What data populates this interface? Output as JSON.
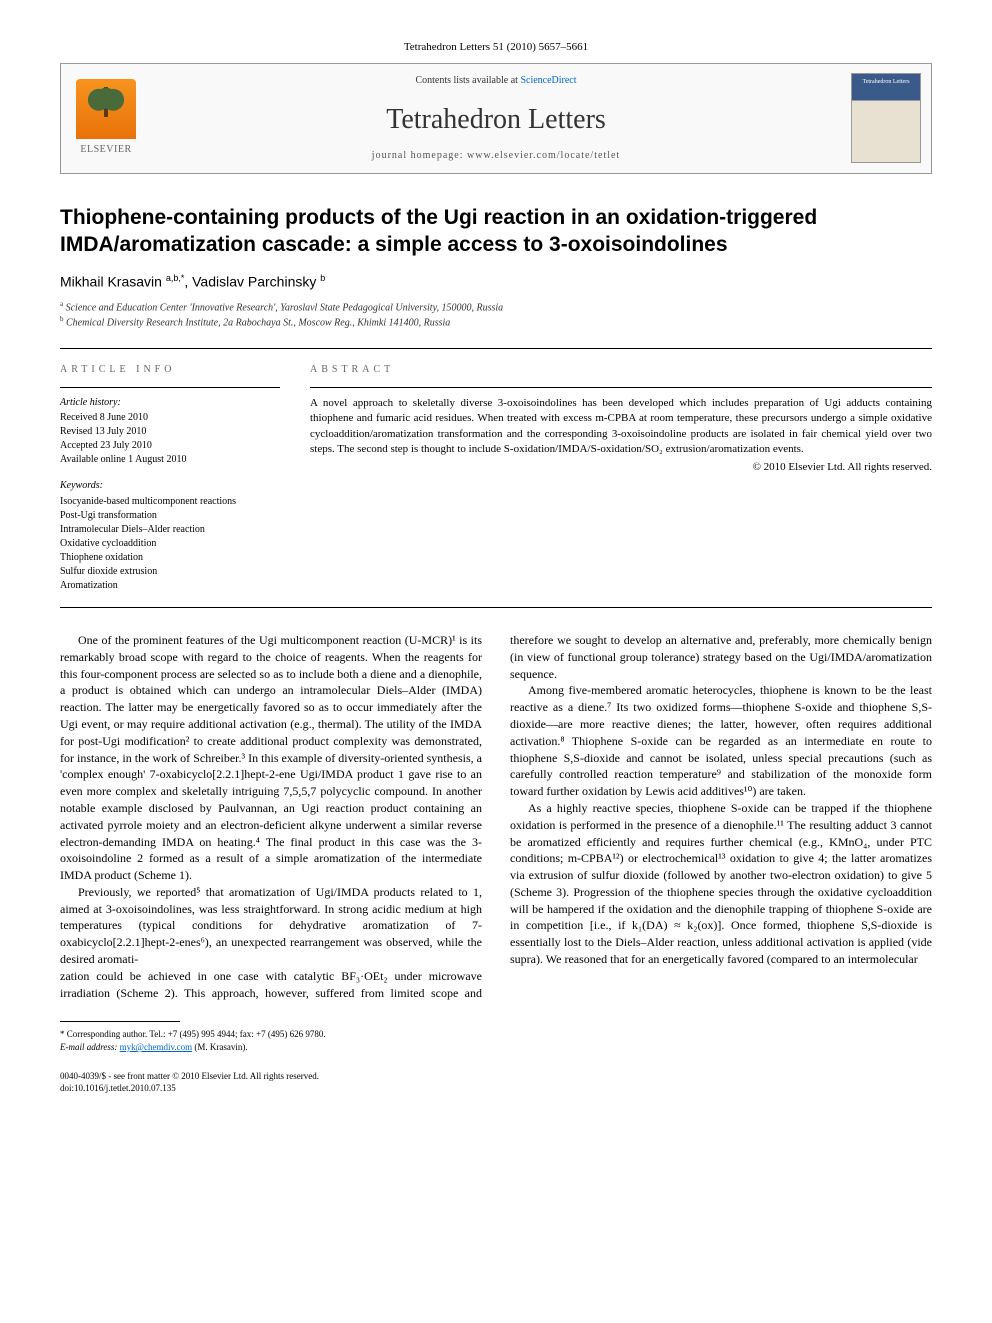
{
  "citation": "Tetrahedron Letters 51 (2010) 5657–5661",
  "header": {
    "contents_prefix": "Contents lists available at ",
    "contents_link": "ScienceDirect",
    "journal": "Tetrahedron Letters",
    "homepage_prefix": "journal homepage: ",
    "homepage_url": "www.elsevier.com/locate/tetlet",
    "publisher": "ELSEVIER",
    "cover_label": "Tetrahedron Letters"
  },
  "title": "Thiophene-containing products of the Ugi reaction in an oxidation-triggered IMDA/aromatization cascade: a simple access to 3-oxoisoindolines",
  "authors_html": "Mikhail Krasavin <span class='sup'>a,b,*</span>, Vadislav Parchinsky <span class='sup'>b</span>",
  "affiliations": [
    {
      "sup": "a",
      "text": "Science and Education Center 'Innovative Research', Yaroslavl State Pedagogical University, 150000, Russia"
    },
    {
      "sup": "b",
      "text": "Chemical Diversity Research Institute, 2a Rabochaya St., Moscow Reg., Khimki 141400, Russia"
    }
  ],
  "article_info": {
    "label": "ARTICLE INFO",
    "history_label": "Article history:",
    "history": [
      "Received 8 June 2010",
      "Revised 13 July 2010",
      "Accepted 23 July 2010",
      "Available online 1 August 2010"
    ],
    "keywords_label": "Keywords:",
    "keywords": [
      "Isocyanide-based multicomponent reactions",
      "Post-Ugi transformation",
      "Intramolecular Diels–Alder reaction",
      "Oxidative cycloaddition",
      "Thiophene oxidation",
      "Sulfur dioxide extrusion",
      "Aromatization"
    ]
  },
  "abstract": {
    "label": "ABSTRACT",
    "text": "A novel approach to skeletally diverse 3-oxoisoindolines has been developed which includes preparation of Ugi adducts containing thiophene and fumaric acid residues. When treated with excess m-CPBA at room temperature, these precursors undergo a simple oxidative cycloaddition/aromatization transformation and the corresponding 3-oxoisoindoline products are isolated in fair chemical yield over two steps. The second step is thought to include S-oxidation/IMDA/S-oxidation/SO₂ extrusion/aromatization events.",
    "copyright": "© 2010 Elsevier Ltd. All rights reserved."
  },
  "body": {
    "p1": "One of the prominent features of the Ugi multicomponent reaction (U-MCR)¹ is its remarkably broad scope with regard to the choice of reagents. When the reagents for this four-component process are selected so as to include both a diene and a dienophile, a product is obtained which can undergo an intramolecular Diels–Alder (IMDA) reaction. The latter may be energetically favored so as to occur immediately after the Ugi event, or may require additional activation (e.g., thermal). The utility of the IMDA for post-Ugi modification² to create additional product complexity was demonstrated, for instance, in the work of Schreiber.³ In this example of diversity-oriented synthesis, a 'complex enough' 7-oxabicyclo[2.2.1]hept-2-ene Ugi/IMDA product 1 gave rise to an even more complex and skeletally intriguing 7,5,5,7 polycyclic compound. In another notable example disclosed by Paulvannan, an Ugi reaction product containing an activated pyrrole moiety and an electron-deficient alkyne underwent a similar reverse electron-demanding IMDA on heating.⁴ The final product in this case was the 3-oxoisoindoline 2 formed as a result of a simple aromatization of the intermediate IMDA product (Scheme 1).",
    "p2": "Previously, we reported⁵ that aromatization of Ugi/IMDA products related to 1, aimed at 3-oxoisoindolines, was less straightforward. In strong acidic medium at high temperatures (typical conditions for dehydrative aromatization of 7-oxabicyclo[2.2.1]hept-2-enes⁶), an unexpected rearrangement was observed, while the desired aromati-",
    "p3": "zation could be achieved in one case with catalytic BF₃·OEt₂ under microwave irradiation (Scheme 2). This approach, however, suffered from limited scope and therefore we sought to develop an alternative and, preferably, more chemically benign (in view of functional group tolerance) strategy based on the Ugi/IMDA/aromatization sequence.",
    "p4": "Among five-membered aromatic heterocycles, thiophene is known to be the least reactive as a diene.⁷ Its two oxidized forms—thiophene S-oxide and thiophene S,S-dioxide—are more reactive dienes; the latter, however, often requires additional activation.⁸ Thiophene S-oxide can be regarded as an intermediate en route to thiophene S,S-dioxide and cannot be isolated, unless special precautions (such as carefully controlled reaction temperature⁹ and stabilization of the monoxide form toward further oxidation by Lewis acid additives¹⁰) are taken.",
    "p5": "As a highly reactive species, thiophene S-oxide can be trapped if the thiophene oxidation is performed in the presence of a dienophile.¹¹ The resulting adduct 3 cannot be aromatized efficiently and requires further chemical (e.g., KMnO₄, under PTC conditions; m-CPBA¹²) or electrochemical¹³ oxidation to give 4; the latter aromatizes via extrusion of sulfur dioxide (followed by another two-electron oxidation) to give 5 (Scheme 3). Progression of the thiophene species through the oxidative cycloaddition will be hampered if the oxidation and the dienophile trapping of thiophene S-oxide are in competition [i.e., if k₁(DA) ≈ k₂(ox)]. Once formed, thiophene S,S-dioxide is essentially lost to the Diels–Alder reaction, unless additional activation is applied (vide supra). We reasoned that for an energetically favored (compared to an intermolecular"
  },
  "footnotes": {
    "corr": "* Corresponding author. Tel.: +7 (495) 995 4944; fax: +7 (495) 626 9780.",
    "email_label": "E-mail address:",
    "email": "myk@chemdiv.com",
    "email_name": "(M. Krasavin)."
  },
  "footer": {
    "line1": "0040-4039/$ - see front matter © 2010 Elsevier Ltd. All rights reserved.",
    "line2": "doi:10.1016/j.tetlet.2010.07.135"
  },
  "colors": {
    "link": "#0066cc",
    "text": "#000000",
    "muted": "#666666",
    "border": "#999999",
    "elsevier_orange": "#f7941e"
  }
}
